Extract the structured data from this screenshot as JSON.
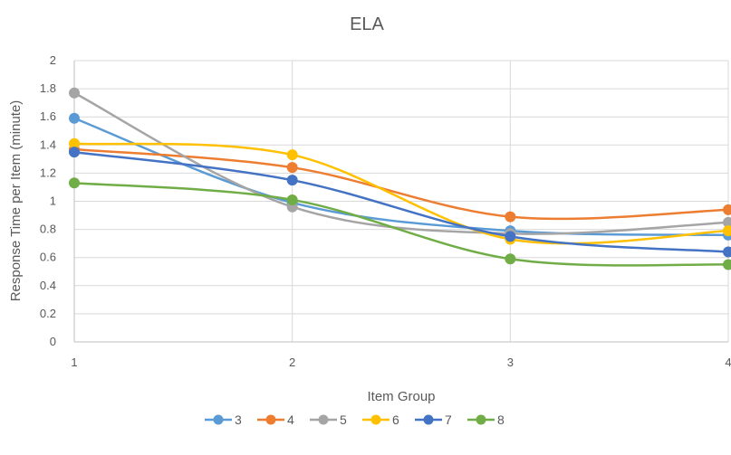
{
  "chart_data": {
    "type": "line",
    "title": "ELA",
    "xlabel": "Item Group",
    "ylabel": "Response Time per Item (minute)",
    "x": [
      1,
      2,
      3,
      4
    ],
    "x_tick_labels": [
      "1",
      "2",
      "3",
      "4"
    ],
    "ylim": [
      0,
      2
    ],
    "y_ticks": [
      0,
      0.2,
      0.4,
      0.6,
      0.8,
      1,
      1.2,
      1.4,
      1.6,
      1.8,
      2
    ],
    "y_tick_labels": [
      "0",
      "0.2",
      "0.4",
      "0.6",
      "0.8",
      "1",
      "1.2",
      "1.4",
      "1.6",
      "1.8",
      "2"
    ],
    "grid": true,
    "smooth": true,
    "legend_position": "bottom",
    "series": [
      {
        "name": "3",
        "color": "#5B9BD5",
        "values": [
          1.59,
          0.99,
          0.79,
          0.76
        ]
      },
      {
        "name": "4",
        "color": "#ED7D31",
        "values": [
          1.37,
          1.24,
          0.89,
          0.94
        ]
      },
      {
        "name": "5",
        "color": "#A5A5A5",
        "values": [
          1.77,
          0.96,
          0.77,
          0.85
        ]
      },
      {
        "name": "6",
        "color": "#FFC000",
        "values": [
          1.41,
          1.33,
          0.73,
          0.79
        ]
      },
      {
        "name": "7",
        "color": "#4472C4",
        "values": [
          1.35,
          1.15,
          0.75,
          0.64
        ]
      },
      {
        "name": "8",
        "color": "#70AD47",
        "values": [
          1.13,
          1.01,
          0.59,
          0.55
        ]
      }
    ]
  }
}
